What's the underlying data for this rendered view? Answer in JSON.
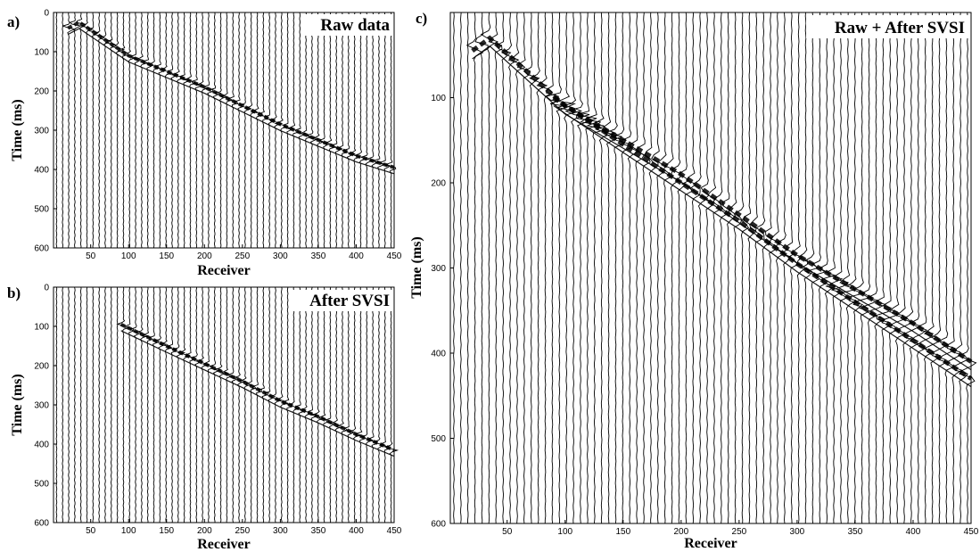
{
  "chart_data": [
    {
      "type": "seismic-wiggle",
      "panel_label": "a)",
      "title": "Raw data",
      "xlabel": "Receiver",
      "ylabel": "Time (ms)",
      "xlim": [
        1,
        450
      ],
      "ylim": [
        0,
        600
      ],
      "y_inverted": true,
      "x_ticks": [
        "50",
        "100",
        "150",
        "200",
        "250",
        "300",
        "350",
        "400",
        "450"
      ],
      "y_ticks": [
        "0",
        "100",
        "200",
        "300",
        "400",
        "500",
        "600"
      ],
      "grid": false,
      "events": [
        {
          "name": "",
          "receivers": [
            20,
            35,
            100,
            200,
            300,
            400,
            450
          ],
          "times": [
            40,
            25,
            110,
            190,
            285,
            365,
            395
          ]
        }
      ]
    },
    {
      "type": "seismic-wiggle",
      "panel_label": "b)",
      "title": "After SVSI",
      "xlabel": "Receiver",
      "ylabel": "Time (ms)",
      "xlim": [
        1,
        450
      ],
      "ylim": [
        0,
        600
      ],
      "y_inverted": true,
      "x_ticks": [
        "50",
        "100",
        "150",
        "200",
        "250",
        "300",
        "350",
        "400",
        "450"
      ],
      "y_ticks": [
        "0",
        "100",
        "200",
        "300",
        "400",
        "500",
        "600"
      ],
      "grid": false,
      "events": [
        {
          "name": "",
          "receivers": [
            90,
            150,
            200,
            250,
            300,
            350,
            400,
            450
          ],
          "times": [
            95,
            150,
            195,
            240,
            290,
            330,
            375,
            415
          ]
        }
      ]
    },
    {
      "type": "seismic-wiggle",
      "panel_label": "c)",
      "title": "Raw + After SVSI",
      "xlabel": "Receiver",
      "ylabel": "Time (ms)",
      "xlim": [
        1,
        450
      ],
      "ylim": [
        0,
        600
      ],
      "y_inverted": true,
      "x_ticks": [
        "50",
        "100",
        "150",
        "200",
        "250",
        "300",
        "350",
        "400",
        "450"
      ],
      "y_ticks": [
        "100",
        "200",
        "300",
        "400",
        "500",
        "600"
      ],
      "grid": false,
      "events": [
        {
          "name": "",
          "receivers": [
            20,
            35,
            100,
            200,
            300,
            400,
            450
          ],
          "times": [
            45,
            30,
            110,
            190,
            285,
            365,
            410
          ]
        },
        {
          "name": "",
          "receivers": [
            90,
            150,
            200,
            250,
            300,
            350,
            400,
            450
          ],
          "times": [
            100,
            155,
            200,
            245,
            295,
            340,
            385,
            430
          ]
        }
      ]
    }
  ]
}
